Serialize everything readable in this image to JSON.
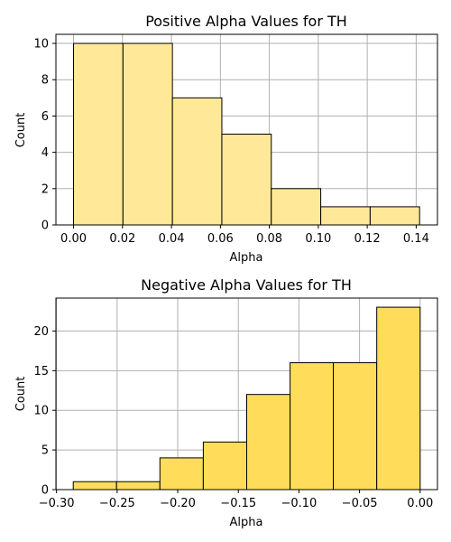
{
  "chart_data": [
    {
      "type": "bar",
      "title": "Positive Alpha Values for TH",
      "xlabel": "Alpha",
      "ylabel": "Count",
      "bins": [
        {
          "x0": 0.0,
          "x1": 0.0202,
          "count": 10
        },
        {
          "x0": 0.0202,
          "x1": 0.0404,
          "count": 10
        },
        {
          "x0": 0.0404,
          "x1": 0.0606,
          "count": 7
        },
        {
          "x0": 0.0606,
          "x1": 0.0808,
          "count": 5
        },
        {
          "x0": 0.0808,
          "x1": 0.101,
          "count": 2
        },
        {
          "x0": 0.101,
          "x1": 0.1212,
          "count": 1
        },
        {
          "x0": 0.1212,
          "x1": 0.1414,
          "count": 1
        }
      ],
      "xlim": [
        -0.0072,
        0.1487
      ],
      "ylim": [
        0,
        10.5
      ],
      "xticks": [
        0.0,
        0.02,
        0.04,
        0.06,
        0.08,
        0.1,
        0.12,
        0.14
      ],
      "xtick_labels": [
        "0.00",
        "0.02",
        "0.04",
        "0.06",
        "0.08",
        "0.10",
        "0.12",
        "0.14"
      ],
      "yticks": [
        0,
        2,
        4,
        6,
        8,
        10
      ],
      "ytick_labels": [
        "0",
        "2",
        "4",
        "6",
        "8",
        "10"
      ],
      "grid": true,
      "color": "#ffe999"
    },
    {
      "type": "bar",
      "title": "Negative Alpha Values for TH",
      "xlabel": "Alpha",
      "ylabel": "Count",
      "bins": [
        {
          "x0": -0.2862,
          "x1": -0.2505,
          "count": 1
        },
        {
          "x0": -0.2505,
          "x1": -0.2147,
          "count": 1
        },
        {
          "x0": -0.2147,
          "x1": -0.1789,
          "count": 4
        },
        {
          "x0": -0.1789,
          "x1": -0.1431,
          "count": 6
        },
        {
          "x0": -0.1431,
          "x1": -0.1073,
          "count": 12
        },
        {
          "x0": -0.1073,
          "x1": -0.0716,
          "count": 16
        },
        {
          "x0": -0.0716,
          "x1": -0.0358,
          "count": 16
        },
        {
          "x0": -0.0358,
          "x1": 0.0,
          "count": 23
        }
      ],
      "xlim": [
        -0.3005,
        0.0143
      ],
      "ylim": [
        0,
        24.15
      ],
      "xticks": [
        -0.3,
        -0.25,
        -0.2,
        -0.15,
        -0.1,
        -0.05,
        0.0
      ],
      "xtick_labels": [
        "−0.30",
        "−0.25",
        "−0.20",
        "−0.15",
        "−0.10",
        "−0.05",
        "0.00"
      ],
      "yticks": [
        0,
        5,
        10,
        15,
        20
      ],
      "ytick_labels": [
        "0",
        "5",
        "10",
        "15",
        "20"
      ],
      "grid": true,
      "color": "#ffdd5a"
    }
  ]
}
